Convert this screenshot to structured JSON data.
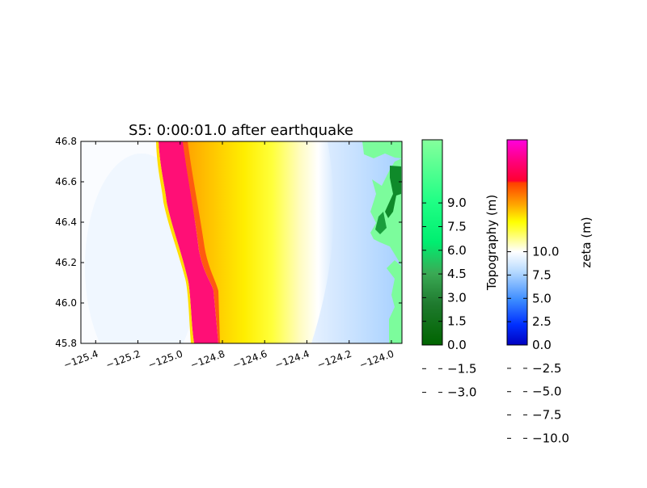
{
  "chart_data": {
    "type": "heatmap",
    "title": "S5: 0:00:01.0 after earthquake",
    "xlabel": "",
    "ylabel": "",
    "x_ticks": [
      "−125.4",
      "−125.2",
      "−125.0",
      "−124.8",
      "−124.6",
      "−124.4",
      "−124.2",
      "−124.0"
    ],
    "x_tick_values": [
      -125.4,
      -125.2,
      -125.0,
      -124.8,
      -124.6,
      -124.4,
      -124.2,
      -124.0
    ],
    "y_ticks": [
      "45.8",
      "46.0",
      "46.2",
      "46.4",
      "46.6",
      "46.8"
    ],
    "y_tick_values": [
      45.8,
      46.0,
      46.2,
      46.4,
      46.6,
      46.8
    ],
    "xlim": [
      -125.47,
      -123.95
    ],
    "ylim": [
      45.8,
      46.8
    ],
    "grid": false,
    "wave_front": {
      "description_values": "longitude of leading edge of zeta crest at given latitude",
      "latitudes": [
        46.8,
        46.4,
        46.2,
        46.0,
        45.8
      ],
      "crest_lon_west": [
        -125.14,
        -125.09,
        -125.03,
        -124.98,
        -124.97
      ],
      "crest_lon_east": [
        -125.02,
        -124.99,
        -124.93,
        -124.89,
        -124.87
      ]
    },
    "colorbars": [
      {
        "label": "Topography (m)",
        "ticks": [
          "−3.0",
          "−1.5",
          "0.0",
          "1.5",
          "3.0",
          "4.5",
          "6.0",
          "7.5",
          "9.0"
        ],
        "range": [
          -3.0,
          10.0
        ],
        "colors": [
          "#006400",
          "#2e8b57",
          "#00ff80",
          "#7cfc9c"
        ]
      },
      {
        "label": "zeta (m)",
        "ticks": [
          "−10.0",
          "−7.5",
          "−5.0",
          "−2.5",
          "0.0",
          "2.5",
          "5.0",
          "7.5",
          "10.0"
        ],
        "range": [
          -10.0,
          12.0
        ],
        "colors": [
          "#0000c8",
          "#1e6cff",
          "#8fc4ff",
          "#ffffff",
          "#ffff00",
          "#ff8800",
          "#ff0000",
          "#ff00cc"
        ]
      }
    ]
  }
}
